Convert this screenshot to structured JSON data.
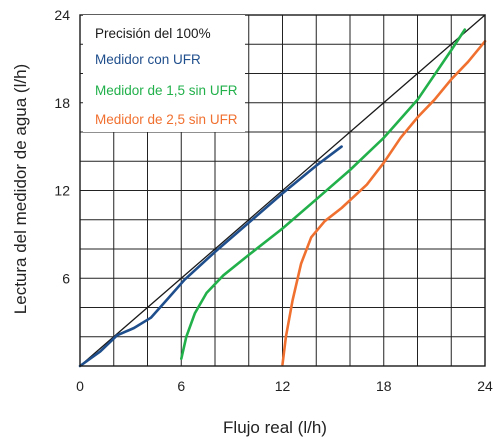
{
  "chart_data": {
    "type": "line",
    "title": "",
    "xlabel": "Flujo real (l/h)",
    "ylabel": "Lectura del medidor de agua (l/h)",
    "xlim": [
      0,
      24
    ],
    "ylim": [
      0,
      24
    ],
    "x_ticks": [
      0,
      6,
      12,
      18,
      24
    ],
    "y_ticks": [
      0,
      6,
      12,
      18,
      24
    ],
    "x_tick_labels": [
      "0",
      "6",
      "12",
      "18",
      "24"
    ],
    "y_tick_labels": [
      "",
      "6",
      "12",
      "18",
      "24"
    ],
    "grid": true,
    "grid_step": 2,
    "legend_position": "top-left",
    "series": [
      {
        "name": "Precisión del 100%",
        "color": "#1a1a1a",
        "x": [
          0,
          24
        ],
        "y": [
          0,
          24
        ]
      },
      {
        "name": "Medidor con UFR",
        "color": "#1f4e8c",
        "x": [
          0,
          1.2,
          2.2,
          3.2,
          4.2,
          5.2,
          6.2,
          8,
          10,
          12,
          14,
          15.5
        ],
        "y": [
          0,
          1.0,
          2.1,
          2.6,
          3.3,
          4.6,
          5.9,
          7.8,
          9.8,
          11.8,
          13.7,
          15.0
        ]
      },
      {
        "name": "Medidor de 1,5 sin UFR",
        "color": "#22b04b",
        "x": [
          6.0,
          6.3,
          6.8,
          7.5,
          8.5,
          10,
          12,
          14,
          16,
          18,
          20,
          22,
          22.8
        ],
        "y": [
          0.5,
          2.0,
          3.6,
          5.0,
          6.2,
          7.6,
          9.4,
          11.4,
          13.4,
          15.6,
          18.2,
          21.6,
          23
        ]
      },
      {
        "name": "Medidor de 2,5 sin UFR",
        "color": "#f07030",
        "x": [
          12.0,
          12.2,
          12.6,
          13.1,
          13.7,
          14.5,
          15.5,
          17,
          18,
          19,
          20,
          21,
          22,
          23,
          24
        ],
        "y": [
          0.1,
          2.0,
          4.5,
          7.0,
          8.8,
          9.9,
          10.8,
          12.4,
          13.9,
          15.6,
          17.0,
          18.2,
          19.6,
          20.8,
          22.2
        ]
      }
    ]
  }
}
